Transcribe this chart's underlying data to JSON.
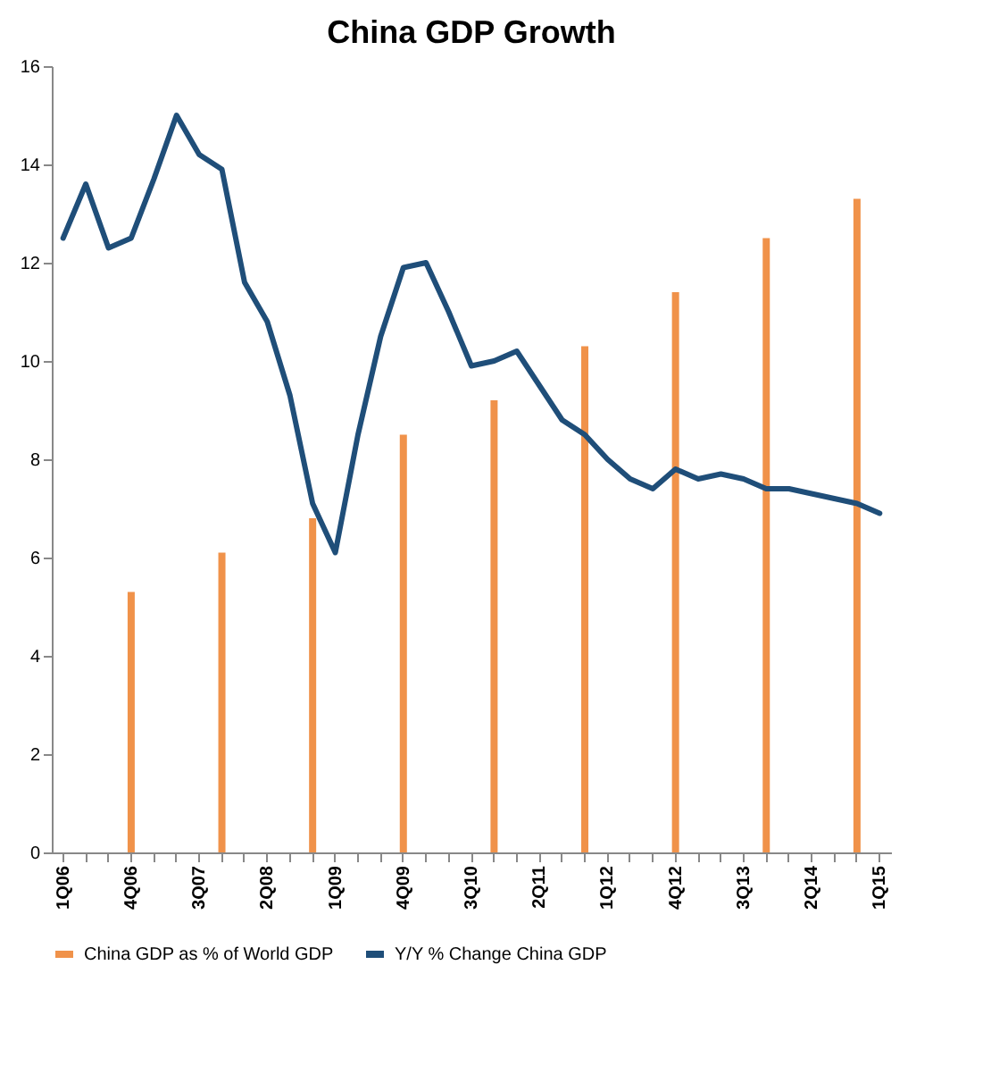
{
  "chart_data": {
    "type": "bar",
    "title": "China GDP Growth",
    "categories": [
      "1Q06",
      null,
      null,
      "4Q06",
      null,
      null,
      "3Q07",
      null,
      null,
      "2Q08",
      null,
      null,
      "1Q09",
      null,
      null,
      "4Q09",
      null,
      null,
      "3Q10",
      null,
      null,
      "2Q11",
      null,
      null,
      "1Q12",
      null,
      null,
      "4Q12",
      null,
      null,
      "3Q13",
      null,
      null,
      "2Q14",
      null,
      null,
      "1Q15"
    ],
    "series": [
      {
        "name": "China GDP as % of World GDP",
        "color": "#f0924a",
        "values": [
          null,
          null,
          null,
          5.3,
          null,
          null,
          null,
          6.1,
          null,
          null,
          null,
          6.8,
          null,
          null,
          null,
          8.5,
          null,
          null,
          null,
          9.2,
          null,
          null,
          null,
          10.3,
          null,
          null,
          null,
          11.4,
          null,
          null,
          null,
          12.5,
          null,
          null,
          null,
          13.3,
          null
        ]
      },
      {
        "name": "Y/Y % Change China GDP",
        "type": "line",
        "color": "#1f4e79",
        "values": [
          12.5,
          13.6,
          12.3,
          12.5,
          13.7,
          15.0,
          14.2,
          13.9,
          11.6,
          10.8,
          9.3,
          7.1,
          6.1,
          8.5,
          10.5,
          11.9,
          12.0,
          11.0,
          9.9,
          10.0,
          10.2,
          9.5,
          8.8,
          8.5,
          8.0,
          7.6,
          7.4,
          7.8,
          7.6,
          7.7,
          7.6,
          7.4,
          7.4,
          7.3,
          7.2,
          7.1,
          6.9
        ]
      }
    ],
    "ylim": [
      0,
      16
    ],
    "yticks": [
      0,
      2,
      4,
      6,
      8,
      10,
      12,
      14,
      16
    ],
    "grid": false,
    "legend": "bottom"
  }
}
